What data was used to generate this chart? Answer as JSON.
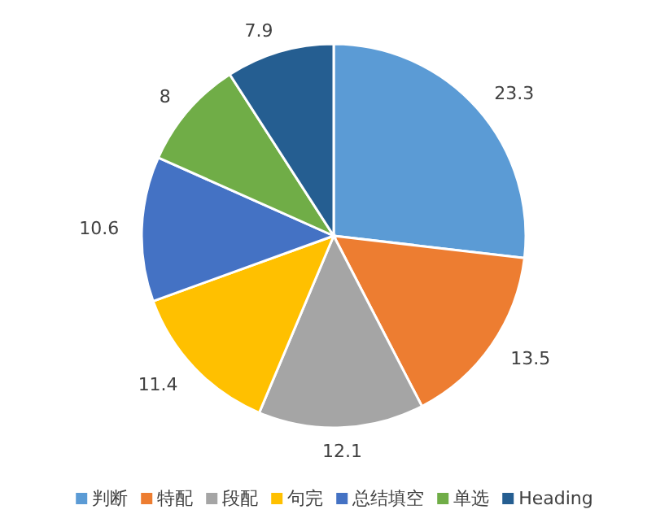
{
  "chart_data": {
    "type": "pie",
    "categories": [
      "判断",
      "特配",
      "段配",
      "句完",
      "总结填空",
      "单选",
      "Heading"
    ],
    "values": [
      23.3,
      13.5,
      12.1,
      11.4,
      10.6,
      8,
      7.9
    ],
    "colors": [
      "#5b9bd5",
      "#ed7d31",
      "#a5a5a5",
      "#ffc000",
      "#4472c4",
      "#70ad47",
      "#255e91"
    ],
    "data_labels": true,
    "legend": "bottom"
  }
}
